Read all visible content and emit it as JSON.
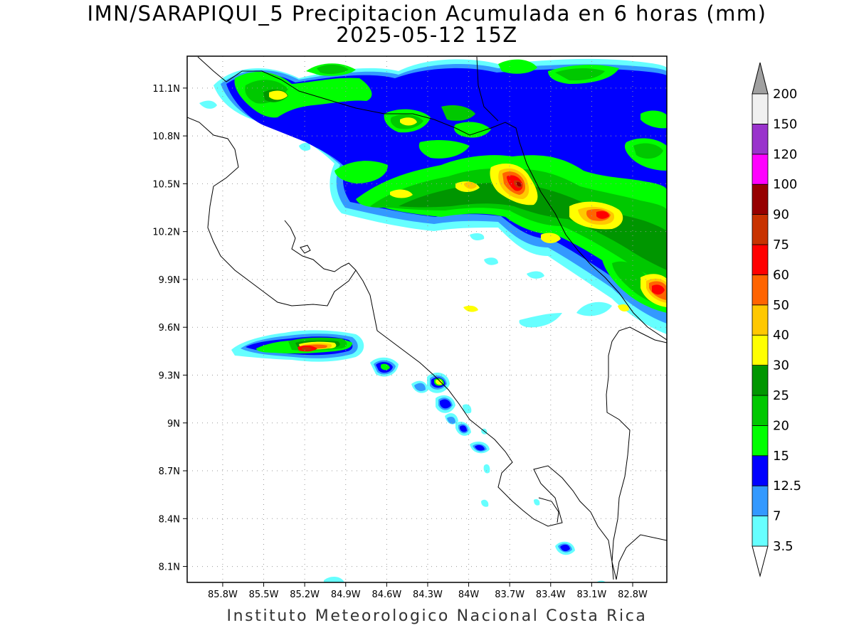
{
  "title": "IMN/SARAPIQUI_5 Precipitacion Acumulada en 6 horas (mm)",
  "subtitle": "2025-05-12 15Z",
  "credit": "Instituto Meteorologico Nacional Costa Rica",
  "map": {
    "extent": {
      "lon_min": -86.06,
      "lon_max": -82.55,
      "lat_min": 8.0,
      "lat_max": 11.3
    },
    "lon_ticks": [
      {
        "value": -85.8,
        "label": "85.8W"
      },
      {
        "value": -85.5,
        "label": "85.5W"
      },
      {
        "value": -85.2,
        "label": "85.2W"
      },
      {
        "value": -84.9,
        "label": "84.9W"
      },
      {
        "value": -84.6,
        "label": "84.6W"
      },
      {
        "value": -84.3,
        "label": "84.3W"
      },
      {
        "value": -84.0,
        "label": "84W"
      },
      {
        "value": -83.7,
        "label": "83.7W"
      },
      {
        "value": -83.4,
        "label": "83.4W"
      },
      {
        "value": -83.1,
        "label": "83.1W"
      },
      {
        "value": -82.8,
        "label": "82.8W"
      }
    ],
    "lat_ticks": [
      {
        "value": 11.1,
        "label": "11.1N"
      },
      {
        "value": 10.8,
        "label": "10.8N"
      },
      {
        "value": 10.5,
        "label": "10.5N"
      },
      {
        "value": 10.2,
        "label": "10.2N"
      },
      {
        "value": 9.9,
        "label": "9.9N"
      },
      {
        "value": 9.6,
        "label": "9.6N"
      },
      {
        "value": 9.3,
        "label": "9.3N"
      },
      {
        "value": 9.0,
        "label": "9N"
      },
      {
        "value": 8.7,
        "label": "8.7N"
      },
      {
        "value": 8.4,
        "label": "8.4N"
      },
      {
        "value": 8.1,
        "label": "8.1N"
      }
    ],
    "grid": "dotted"
  },
  "colorbar": {
    "levels": [
      {
        "label": "3.5",
        "color": "#66ffff"
      },
      {
        "label": "7",
        "color": "#3399ff"
      },
      {
        "label": "12.5",
        "color": "#0000ff"
      },
      {
        "label": "15",
        "color": "#00ff00"
      },
      {
        "label": "20",
        "color": "#00c800"
      },
      {
        "label": "25",
        "color": "#009600"
      },
      {
        "label": "30",
        "color": "#ffff00"
      },
      {
        "label": "40",
        "color": "#ffc800"
      },
      {
        "label": "50",
        "color": "#ff6400"
      },
      {
        "label": "60",
        "color": "#ff0000"
      },
      {
        "label": "75",
        "color": "#c83200"
      },
      {
        "label": "90",
        "color": "#960000"
      },
      {
        "label": "100",
        "color": "#ff00ff"
      },
      {
        "label": "120",
        "color": "#9933cc"
      },
      {
        "label": "150",
        "color": "#f0f0f0"
      },
      {
        "label": "200",
        "color": "#a0a0a0"
      }
    ],
    "top_arrow_color": "#a0a0a0",
    "bottom_arrow_color": "#ffffff"
  }
}
